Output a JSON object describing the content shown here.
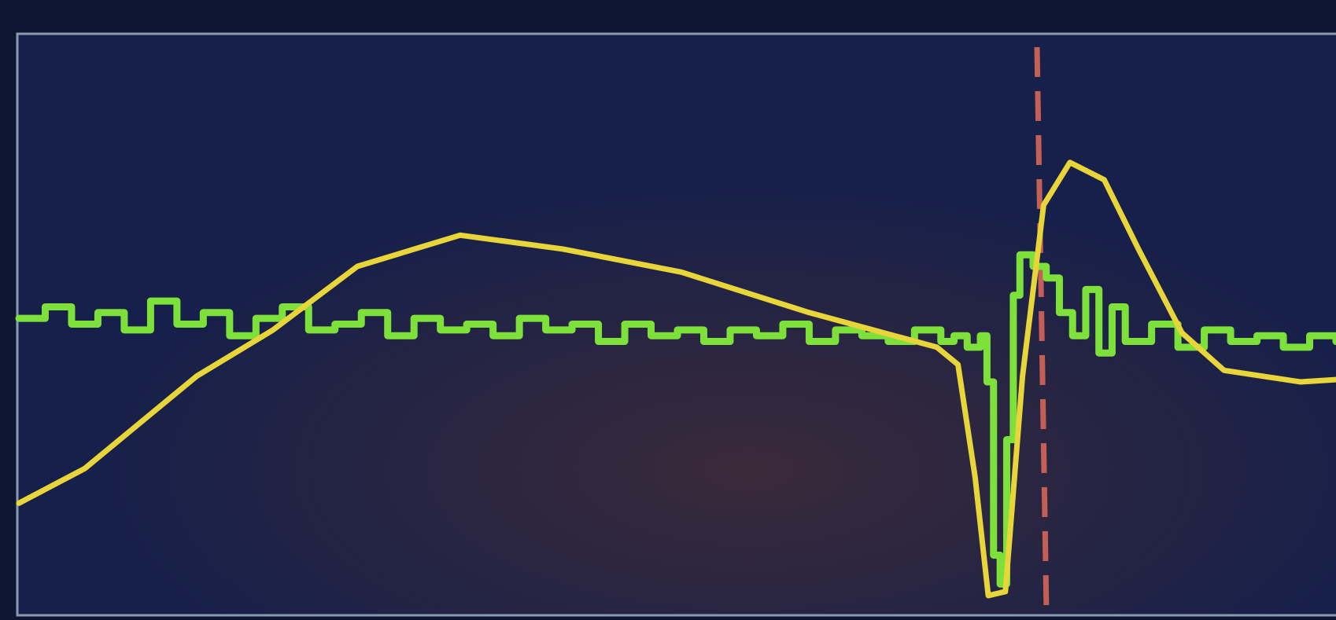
{
  "chart_data": {
    "type": "line",
    "xlim": [
      0,
      100
    ],
    "ylim": [
      0,
      100
    ],
    "series": [
      {
        "color": "#7ee03a",
        "x": [
          0,
          2,
          4,
          6,
          8,
          10,
          12,
          14,
          16,
          18,
          20,
          22,
          24,
          26,
          28,
          30,
          32,
          34,
          36,
          38,
          40,
          42,
          44,
          46,
          48,
          50,
          52,
          54,
          56,
          58,
          60,
          62,
          64,
          66,
          68,
          70,
          71,
          72,
          73,
          73.5,
          74,
          74.5,
          75,
          75.5,
          76,
          77,
          78,
          79,
          80,
          81,
          82,
          83,
          84,
          86,
          88,
          90,
          92,
          94,
          96,
          98,
          100
        ],
        "values": [
          51,
          53,
          50,
          52,
          49,
          54,
          50,
          52,
          48,
          51,
          53,
          49,
          50,
          52,
          48,
          51,
          49,
          50,
          48,
          51,
          49,
          50,
          47,
          50,
          48,
          49,
          47,
          49,
          48,
          50,
          47,
          49,
          48,
          47,
          49,
          47,
          48,
          46,
          48,
          40,
          10,
          5,
          30,
          55,
          62,
          60,
          58,
          52,
          48,
          56,
          45,
          53,
          47,
          50,
          46,
          49,
          47,
          48,
          46,
          48,
          47
        ]
      },
      {
        "color": "#e8d53a",
        "x": [
          0,
          5,
          13.5,
          19.3,
          25.7,
          33.5,
          41.3,
          50.3,
          60,
          69.7,
          71.3,
          72.6,
          73.6,
          74.9,
          76.2,
          77.8,
          79.8,
          82.4,
          85,
          88.3,
          91.5,
          97.3,
          100
        ],
        "values": [
          19,
          25,
          41,
          49,
          60,
          65.4,
          63,
          59,
          52,
          46,
          43,
          23.5,
          3,
          3.7,
          41,
          70.6,
          78,
          75,
          63,
          48.5,
          42,
          40,
          40.4
        ]
      }
    ],
    "cursor": {
      "x": 77.3,
      "color": "#e06a5a"
    }
  }
}
